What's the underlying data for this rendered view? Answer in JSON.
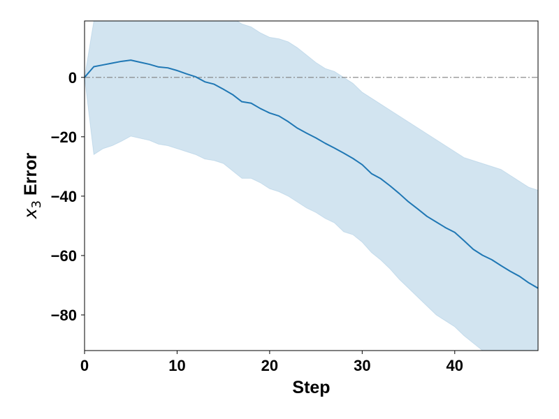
{
  "chart_data": {
    "type": "line",
    "title": "",
    "xlabel": "Step",
    "ylabel": {
      "variable": "x",
      "subscript": "3",
      "text": "Error"
    },
    "xlim": [
      0,
      49
    ],
    "ylim": [
      -92,
      19
    ],
    "xticks": [
      0,
      10,
      20,
      30,
      40
    ],
    "yticks": [
      0,
      -20,
      -40,
      -60,
      -80
    ],
    "xtick_labels": [
      "0",
      "10",
      "20",
      "30",
      "40"
    ],
    "ytick_labels": [
      "0",
      "−20",
      "−40",
      "−60",
      "−80"
    ],
    "grid": false,
    "legend": "none",
    "reference_line": {
      "y": 0,
      "style": "dash-dot",
      "color": "#808080"
    },
    "series": [
      {
        "x": [
          0,
          1,
          2,
          3,
          4,
          5,
          6,
          7,
          8,
          9,
          10,
          11,
          12,
          13,
          14,
          15,
          16,
          17,
          18,
          19,
          20,
          21,
          22,
          23,
          24,
          25,
          26,
          27,
          28,
          29,
          30,
          31,
          32,
          33,
          34,
          35,
          36,
          37,
          38,
          39,
          40,
          41,
          42,
          43,
          44,
          45,
          46,
          47,
          48,
          49
        ],
        "mean": [
          0,
          3.6,
          4.2,
          4.8,
          5.4,
          5.8,
          5.1,
          4.4,
          3.5,
          3.2,
          2.3,
          1.2,
          0.2,
          -1.5,
          -2.3,
          -4,
          -5.8,
          -8.2,
          -8.7,
          -10.5,
          -12,
          -13,
          -14.9,
          -17.1,
          -18.8,
          -20.4,
          -22.2,
          -23.8,
          -25.5,
          -27.3,
          -29.4,
          -32.4,
          -34.1,
          -36.5,
          -39.1,
          -41.9,
          -44.3,
          -46.8,
          -48.7,
          -50.6,
          -52.2,
          -55,
          -57.9,
          -59.9,
          -61.4,
          -63.4,
          -65.3,
          -67,
          -69.2,
          -71
        ],
        "upper": [
          0,
          19,
          35,
          45,
          47,
          46,
          44,
          40,
          35,
          32,
          30,
          28,
          26,
          24,
          22,
          21,
          20,
          18,
          17,
          15,
          13.5,
          13,
          12,
          10,
          7.5,
          5,
          3,
          2,
          0,
          -2,
          -5,
          -7,
          -9,
          -11,
          -13,
          -15,
          -17,
          -19,
          -21,
          -23,
          -25,
          -27,
          -28,
          -29,
          -30,
          -31,
          -33,
          -35,
          -37,
          -38
        ],
        "lower": [
          0,
          -26,
          -24,
          -23,
          -21.5,
          -19.8,
          -20.5,
          -21.2,
          -22.5,
          -23,
          -24,
          -25,
          -26,
          -27.5,
          -28,
          -29,
          -31.5,
          -34,
          -34,
          -35.5,
          -37.5,
          -38.5,
          -40,
          -42,
          -44,
          -45.5,
          -47.5,
          -49,
          -52,
          -53,
          -55.5,
          -59,
          -61.5,
          -64.5,
          -68,
          -71,
          -74,
          -77,
          -80,
          -82,
          -84,
          -87,
          -89.5,
          -92,
          -94,
          -95,
          -97,
          -99,
          -101,
          -103
        ],
        "line_color": "#1f77b4",
        "band_color": "#1f77b4",
        "band_opacity": 0.2
      }
    ]
  }
}
